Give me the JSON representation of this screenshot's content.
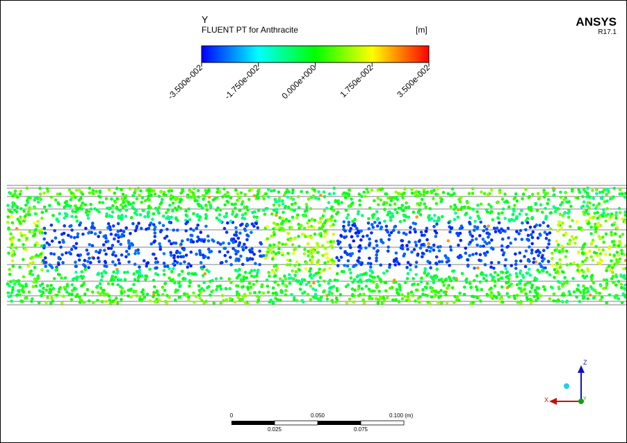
{
  "legend": {
    "variable": "Y",
    "title": "FLUENT PT for Anthracite",
    "unit": "[m]",
    "tick_labels": [
      "-3.500e-002",
      "-1.750e-002",
      "0.000e+000",
      "1.750e-002",
      "3.500e-002"
    ]
  },
  "logo": {
    "brand": "ANSYS",
    "version": "R17.1"
  },
  "scale_bar": {
    "top_labels": [
      "0",
      "0.050",
      "0.100 (m)"
    ],
    "bottom_labels": [
      "0.025",
      "0.075"
    ]
  },
  "triad": {
    "z": "Z",
    "x": "X",
    "y": "Y"
  }
}
